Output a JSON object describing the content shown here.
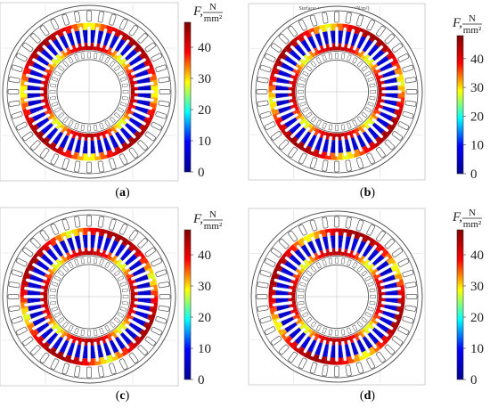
{
  "panels": [
    {
      "id": "a",
      "caption": "a",
      "header": "",
      "tick_values": [
        0,
        10,
        20,
        30,
        40
      ]
    },
    {
      "id": "b",
      "caption": "b",
      "header": "Surface: von Mises stress (N/m²)",
      "tick_values": [
        0,
        10,
        20,
        30,
        40
      ]
    },
    {
      "id": "c",
      "caption": "c",
      "header": "",
      "tick_values": [
        0,
        10,
        20,
        30,
        40
      ]
    },
    {
      "id": "d",
      "caption": "d",
      "header": "",
      "tick_values": [
        0,
        10,
        20,
        30,
        40
      ]
    }
  ],
  "colorbar": {
    "quantity": "F,",
    "unit_numerator": "N",
    "unit_denominator": "mm²",
    "range": [
      0,
      48
    ],
    "ticks": [
      "0",
      "10",
      "20",
      "30",
      "40"
    ]
  },
  "colors": {
    "scale": [
      "#00008f",
      "#0000ff",
      "#00ffff",
      "#ffff00",
      "#ff0000",
      "#800000"
    ],
    "outline": "#555555",
    "background": "#ffffff"
  }
}
